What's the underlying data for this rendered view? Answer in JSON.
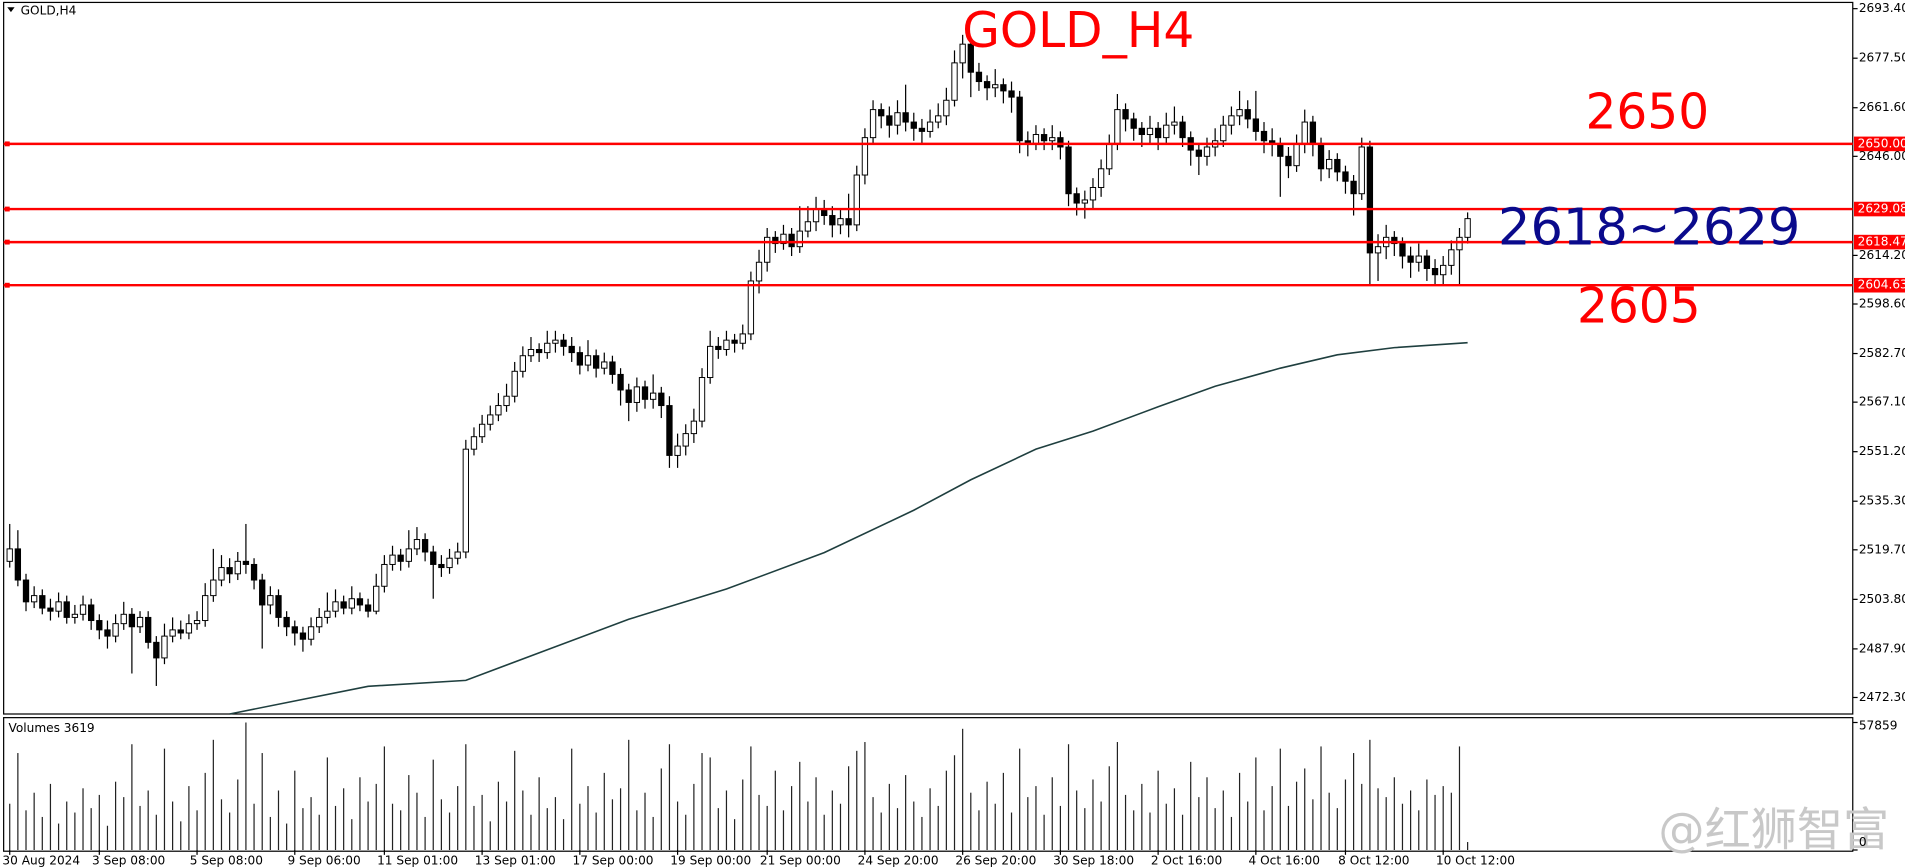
{
  "chart_data": {
    "type": "candlestick",
    "symbol_label": "GOLD,H4",
    "title": "GOLD_H4",
    "volume_label": "Volumes 3619",
    "watermark": "@红狮智富",
    "up_color": "#ffffff",
    "down_color": "#000000",
    "ma_color": "#1f3f3f",
    "level_color": "#ff0000",
    "ylim": [
      2467,
      2695.4
    ],
    "yticks": [
      {
        "value": 2693.4,
        "label": "2693.40"
      },
      {
        "value": 2677.5,
        "label": "2677.50"
      },
      {
        "value": 2661.6,
        "label": "2661.60"
      },
      {
        "value": 2646,
        "label": "2646.00"
      },
      {
        "value": 2614.2,
        "label": "2614.20"
      },
      {
        "value": 2598.6,
        "label": "2598.60"
      },
      {
        "value": 2582.7,
        "label": "2582.70"
      },
      {
        "value": 2567.1,
        "label": "2567.10"
      },
      {
        "value": 2551.2,
        "label": "2551.20"
      },
      {
        "value": 2535.3,
        "label": "2535.30"
      },
      {
        "value": 2519.7,
        "label": "2519.70"
      },
      {
        "value": 2503.8,
        "label": "2503.80"
      },
      {
        "value": 2487.9,
        "label": "2487.90"
      },
      {
        "value": 2472.3,
        "label": "2472.30"
      }
    ],
    "levels": [
      {
        "value": 2650,
        "label": "2650.00"
      },
      2629.08,
      2618.47,
      2604.63
    ],
    "annotations": [
      {
        "text": "GOLD_H4",
        "color": "#ff0000"
      },
      {
        "text": "2650",
        "color": "#ff0000"
      },
      {
        "text": "2618~2629",
        "color": "#0a0a8c"
      },
      {
        "text": "2605",
        "color": "#ff0000"
      }
    ],
    "vlim": [
      0,
      57859
    ],
    "vticks": [
      57859,
      0
    ],
    "xticks": [
      {
        "value": 0,
        "label": "30 Aug 2024"
      },
      {
        "value": 11,
        "label": "3 Sep 08:00"
      },
      {
        "value": 23,
        "label": "5 Sep 08:00"
      },
      {
        "value": 35,
        "label": "9 Sep 06:00"
      },
      {
        "value": 46,
        "label": "11 Sep 01:00"
      },
      {
        "value": 58,
        "label": "13 Sep 01:00"
      },
      {
        "value": 70,
        "label": "17 Sep 00:00"
      },
      {
        "value": 82,
        "label": "19 Sep 00:00"
      },
      {
        "value": 93,
        "label": "21 Sep 00:00"
      },
      {
        "value": 105,
        "label": "24 Sep 20:00"
      },
      {
        "value": 117,
        "label": "26 Sep 20:00"
      },
      {
        "value": 129,
        "label": "30 Sep 18:00"
      },
      {
        "value": 141,
        "label": "2 Oct 16:00"
      },
      {
        "value": 153,
        "label": "4 Oct 16:00"
      },
      {
        "value": 164,
        "label": "8 Oct 12:00"
      },
      {
        "value": 176,
        "label": "10 Oct 12:00"
      }
    ],
    "open": [
      2516,
      2520,
      2510,
      2503,
      2505,
      2501,
      2500,
      2503,
      2498,
      2499,
      2502,
      2497,
      2494,
      2492,
      2496,
      2499,
      2495,
      2498,
      2490,
      2485,
      2492,
      2494,
      2493,
      2496,
      2497,
      2505,
      2510,
      2514,
      2512,
      2516,
      2515,
      2510,
      2502,
      2505,
      2498,
      2495,
      2493,
      2491,
      2495,
      2498,
      2500,
      2503,
      2501,
      2504,
      2502,
      2500,
      2508,
      2515,
      2518,
      2516,
      2520,
      2523,
      2519,
      2515,
      2514,
      2517,
      2519,
      2552,
      2556,
      2560,
      2563,
      2566,
      2569,
      2577,
      2582,
      2584,
      2583,
      2586,
      2587,
      2585,
      2583,
      2579,
      2582,
      2578,
      2580,
      2576,
      2571,
      2567,
      2572,
      2568,
      2570,
      2566,
      2550,
      2553,
      2557,
      2561,
      2575,
      2585,
      2584,
      2587,
      2586,
      2589,
      2606,
      2612,
      2620,
      2618,
      2621,
      2617,
      2622,
      2625,
      2629,
      2627,
      2624,
      2626,
      2624,
      2640,
      2652,
      2661,
      2659,
      2656,
      2660,
      2657,
      2655,
      2654,
      2657,
      2659,
      2664,
      2676,
      2682,
      2673,
      2670,
      2668,
      2669,
      2667,
      2665,
      2651,
      2650,
      2653,
      2651,
      2652,
      2649,
      2634,
      2631,
      2632,
      2636,
      2642,
      2650,
      2661,
      2658,
      2655,
      2653,
      2655,
      2652,
      2656,
      2657,
      2652,
      2648,
      2646,
      2649,
      2651,
      2656,
      2659,
      2661,
      2658,
      2654,
      2651,
      2650,
      2646,
      2643,
      2650,
      2657,
      2650,
      2642,
      2645,
      2641,
      2638,
      2634,
      2649,
      2615,
      2617,
      2620,
      2618,
      2614,
      2612,
      2614,
      2610,
      2608,
      2611,
      2616,
      2620
    ],
    "high": [
      2528,
      2526,
      2512,
      2508,
      2507,
      2504,
      2506,
      2505,
      2502,
      2505,
      2504,
      2499,
      2497,
      2499,
      2503,
      2501,
      2500,
      2500,
      2492,
      2496,
      2498,
      2497,
      2499,
      2500,
      2509,
      2520,
      2518,
      2517,
      2519,
      2528,
      2517,
      2512,
      2508,
      2507,
      2500,
      2497,
      2495,
      2498,
      2501,
      2506,
      2507,
      2505,
      2508,
      2506,
      2504,
      2512,
      2518,
      2521,
      2520,
      2526,
      2527,
      2525,
      2521,
      2518,
      2520,
      2522,
      2555,
      2559,
      2563,
      2566,
      2570,
      2573,
      2580,
      2585,
      2588,
      2586,
      2590,
      2590,
      2589,
      2588,
      2585,
      2587,
      2584,
      2583,
      2582,
      2578,
      2573,
      2575,
      2574,
      2576,
      2572,
      2569,
      2557,
      2560,
      2565,
      2578,
      2590,
      2588,
      2590,
      2589,
      2592,
      2609,
      2616,
      2623,
      2622,
      2624,
      2623,
      2630,
      2630,
      2633,
      2632,
      2630,
      2629,
      2634,
      2643,
      2655,
      2664,
      2663,
      2662,
      2664,
      2669,
      2660,
      2658,
      2661,
      2663,
      2668,
      2680,
      2685,
      2684,
      2676,
      2672,
      2674,
      2671,
      2670,
      2667,
      2654,
      2656,
      2655,
      2656,
      2654,
      2651,
      2636,
      2635,
      2639,
      2645,
      2653,
      2666,
      2663,
      2660,
      2657,
      2659,
      2657,
      2660,
      2662,
      2659,
      2654,
      2650,
      2652,
      2655,
      2659,
      2662,
      2667,
      2664,
      2667,
      2657,
      2655,
      2652,
      2649,
      2653,
      2661,
      2659,
      2652,
      2648,
      2647,
      2643,
      2640,
      2652,
      2651,
      2621,
      2624,
      2622,
      2620,
      2617,
      2618,
      2616,
      2613,
      2614,
      2619,
      2623,
      2628
    ],
    "low": [
      2514,
      2508,
      2500,
      2501,
      2499,
      2497,
      2498,
      2496,
      2496,
      2497,
      2494,
      2491,
      2488,
      2490,
      2494,
      2480,
      2493,
      2488,
      2476,
      2483,
      2490,
      2491,
      2491,
      2494,
      2495,
      2503,
      2508,
      2509,
      2510,
      2512,
      2507,
      2488,
      2499,
      2495,
      2492,
      2489,
      2487,
      2489,
      2493,
      2496,
      2498,
      2499,
      2499,
      2500,
      2498,
      2499,
      2506,
      2513,
      2513,
      2514,
      2518,
      2516,
      2504,
      2511,
      2512,
      2515,
      2517,
      2550,
      2554,
      2558,
      2561,
      2564,
      2567,
      2575,
      2580,
      2580,
      2581,
      2583,
      2582,
      2580,
      2576,
      2577,
      2575,
      2576,
      2573,
      2566,
      2561,
      2564,
      2565,
      2565,
      2562,
      2546,
      2546,
      2550,
      2554,
      2559,
      2573,
      2581,
      2582,
      2583,
      2584,
      2587,
      2602,
      2609,
      2615,
      2616,
      2614,
      2615,
      2620,
      2622,
      2624,
      2620,
      2621,
      2620,
      2622,
      2637,
      2650,
      2655,
      2652,
      2653,
      2654,
      2651,
      2650,
      2652,
      2655,
      2656,
      2662,
      2671,
      2665,
      2667,
      2664,
      2665,
      2663,
      2660,
      2647,
      2646,
      2648,
      2648,
      2648,
      2645,
      2630,
      2627,
      2626,
      2629,
      2633,
      2640,
      2648,
      2654,
      2651,
      2649,
      2650,
      2648,
      2650,
      2653,
      2649,
      2643,
      2640,
      2643,
      2646,
      2649,
      2653,
      2656,
      2655,
      2651,
      2647,
      2646,
      2633,
      2639,
      2641,
      2647,
      2646,
      2638,
      2639,
      2638,
      2634,
      2627,
      2632,
      2605,
      2606,
      2613,
      2614,
      2610,
      2607,
      2609,
      2606,
      2605,
      2605,
      2608,
      2605,
      2618
    ],
    "close": [
      2520,
      2510,
      2503,
      2505,
      2501,
      2500,
      2503,
      2498,
      2499,
      2502,
      2497,
      2494,
      2492,
      2496,
      2499,
      2495,
      2498,
      2490,
      2485,
      2492,
      2494,
      2493,
      2496,
      2497,
      2505,
      2510,
      2514,
      2512,
      2516,
      2515,
      2510,
      2502,
      2505,
      2498,
      2495,
      2493,
      2491,
      2495,
      2498,
      2500,
      2503,
      2501,
      2504,
      2502,
      2500,
      2508,
      2515,
      2518,
      2516,
      2520,
      2523,
      2519,
      2515,
      2514,
      2517,
      2519,
      2552,
      2556,
      2560,
      2563,
      2566,
      2569,
      2577,
      2582,
      2584,
      2583,
      2586,
      2587,
      2585,
      2583,
      2579,
      2582,
      2578,
      2580,
      2576,
      2571,
      2567,
      2572,
      2568,
      2570,
      2566,
      2550,
      2553,
      2557,
      2561,
      2575,
      2585,
      2584,
      2587,
      2586,
      2589,
      2606,
      2612,
      2620,
      2618,
      2621,
      2617,
      2622,
      2625,
      2629,
      2627,
      2624,
      2626,
      2624,
      2640,
      2652,
      2661,
      2659,
      2656,
      2660,
      2657,
      2655,
      2654,
      2657,
      2659,
      2664,
      2676,
      2682,
      2673,
      2670,
      2668,
      2669,
      2667,
      2665,
      2651,
      2650,
      2653,
      2651,
      2652,
      2649,
      2634,
      2631,
      2632,
      2636,
      2642,
      2650,
      2661,
      2658,
      2655,
      2653,
      2655,
      2652,
      2656,
      2657,
      2652,
      2648,
      2646,
      2649,
      2651,
      2656,
      2659,
      2661,
      2658,
      2654,
      2651,
      2650,
      2646,
      2643,
      2650,
      2657,
      2650,
      2642,
      2645,
      2641,
      2638,
      2634,
      2649,
      2615,
      2617,
      2620,
      2618,
      2614,
      2612,
      2614,
      2610,
      2608,
      2611,
      2616,
      2620,
      2626
    ],
    "volumes": [
      21000,
      44000,
      18000,
      26000,
      15000,
      30000,
      12000,
      22000,
      17000,
      28000,
      19000,
      25000,
      11000,
      31000,
      24000,
      48000,
      20000,
      27000,
      16000,
      46000,
      22000,
      13000,
      29000,
      18000,
      35000,
      50000,
      23000,
      17000,
      32000,
      57859,
      21000,
      44000,
      15000,
      27000,
      12000,
      36000,
      19000,
      24000,
      16000,
      42000,
      20000,
      28000,
      14000,
      33000,
      22000,
      30000,
      47000,
      21000,
      18000,
      34000,
      26000,
      15000,
      41000,
      23000,
      17000,
      29000,
      48000,
      20000,
      25000,
      13000,
      31000,
      22000,
      45000,
      27000,
      16000,
      33000,
      19000,
      24000,
      14000,
      46000,
      21000,
      29000,
      17000,
      35000,
      23000,
      28000,
      50000,
      18000,
      26000,
      15000,
      37000,
      48000,
      22000,
      16000,
      30000,
      44000,
      42000,
      19000,
      27000,
      14000,
      32000,
      47000,
      25000,
      20000,
      36000,
      18000,
      29000,
      40000,
      22000,
      33000,
      16000,
      27000,
      21000,
      38000,
      45000,
      49000,
      24000,
      17000,
      30000,
      19000,
      34000,
      22000,
      15000,
      28000,
      20000,
      36000,
      43000,
      55000,
      26000,
      18000,
      31000,
      21000,
      35000,
      17000,
      46000,
      24000,
      29000,
      16000,
      33000,
      20000,
      48000,
      27000,
      19000,
      32000,
      22000,
      38000,
      49000,
      25000,
      18000,
      30000,
      17000,
      36000,
      21000,
      28000,
      16000,
      40000,
      24000,
      33000,
      19000,
      27000,
      15000,
      35000,
      22000,
      42000,
      18000,
      29000,
      46000,
      20000,
      31000,
      37000,
      23000,
      47000,
      26000,
      19000,
      32000,
      44000,
      30000,
      50000,
      28000,
      24000,
      33000,
      21000,
      27000,
      18000,
      32000,
      25000,
      29000,
      26000,
      47000,
      3619
    ],
    "ma": {
      "x": [
        27,
        44,
        56,
        66,
        76,
        88,
        100,
        111,
        118,
        126,
        133,
        141,
        148,
        156,
        163,
        170,
        179
      ],
      "values": [
        2467,
        2475.9,
        2477.8,
        2487.6,
        2497.4,
        2507.1,
        2518.8,
        2532.4,
        2542.2,
        2552,
        2557.8,
        2565.6,
        2572.2,
        2578,
        2582.3,
        2584.6,
        2586.2
      ]
    }
  }
}
